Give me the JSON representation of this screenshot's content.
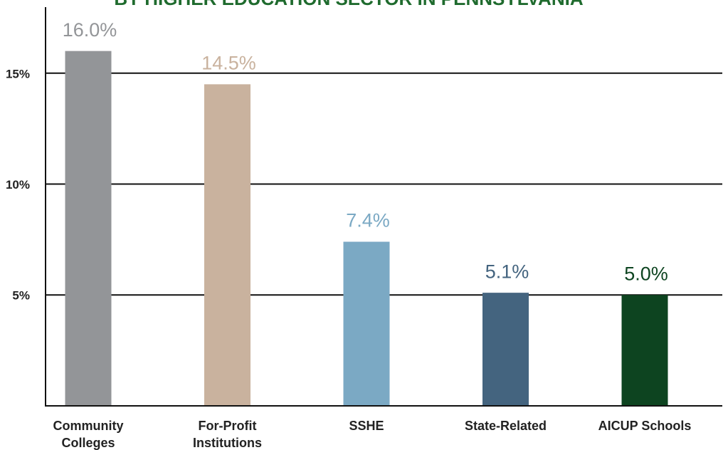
{
  "chart_data": {
    "type": "bar",
    "title": "BY HIGHER EDUCATION SECTOR IN PENNSYLVANIA",
    "categories": [
      "Community Colleges",
      "For-Profit Institutions",
      "SSHE",
      "State-Related",
      "AICUP Schools"
    ],
    "values": [
      16.0,
      14.5,
      7.4,
      5.1,
      5.0
    ],
    "value_labels": [
      "16.0%",
      "14.5%",
      "7.4%",
      "5.1%",
      "5.0%"
    ],
    "colors": [
      "#939598",
      "#c9b29e",
      "#7ba9c4",
      "#44647f",
      "#0d4420"
    ],
    "ylim": [
      0,
      18.3
    ],
    "yticks": [
      {
        "value": 5,
        "label": "5%"
      },
      {
        "value": 10,
        "label": "10%"
      },
      {
        "value": 15,
        "label": "15%"
      }
    ],
    "grid": true
  }
}
